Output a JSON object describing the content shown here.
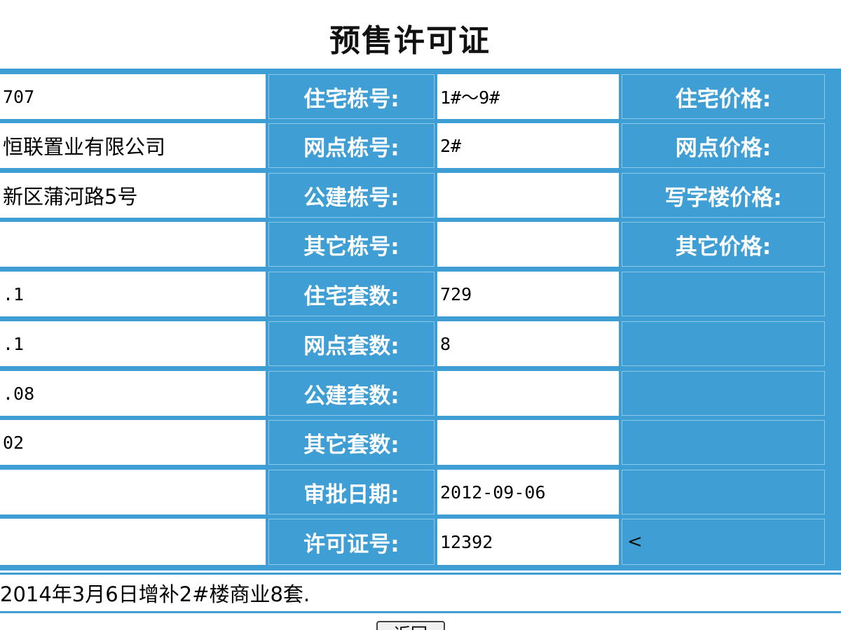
{
  "page": {
    "title": "预售许可证"
  },
  "rows": [
    {
      "left_value": "707",
      "label1": "住宅栋号:",
      "value1": "1#～9#",
      "label2": "住宅价格:"
    },
    {
      "left_value": "恒联置业有限公司",
      "label1": "网点栋号:",
      "value1": "2#",
      "label2": "网点价格:"
    },
    {
      "left_value": "新区蒲河路5号",
      "label1": "公建栋号:",
      "value1": "",
      "label2": "写字楼价格:"
    },
    {
      "left_value": "",
      "label1": "其它栋号:",
      "value1": "",
      "label2": "其它价格:"
    },
    {
      "left_value": ".1",
      "label1": "住宅套数:",
      "value1": "729",
      "label2": ""
    },
    {
      "left_value": ".1",
      "label1": "网点套数:",
      "value1": "8",
      "label2": ""
    },
    {
      "left_value": ".08",
      "label1": "公建套数:",
      "value1": "",
      "label2": ""
    },
    {
      "left_value": "02",
      "label1": "其它套数:",
      "value1": "",
      "label2": ""
    },
    {
      "left_value": "",
      "label1": "审批日期:",
      "value1": "2012-09-06",
      "label2": ""
    },
    {
      "left_value": "",
      "label1": "许可证号:",
      "value1": "12392",
      "label2": "<"
    }
  ],
  "remark": "2014年3月6日增补2#楼商业8套.",
  "buttons": {
    "return_label": "返回"
  }
}
